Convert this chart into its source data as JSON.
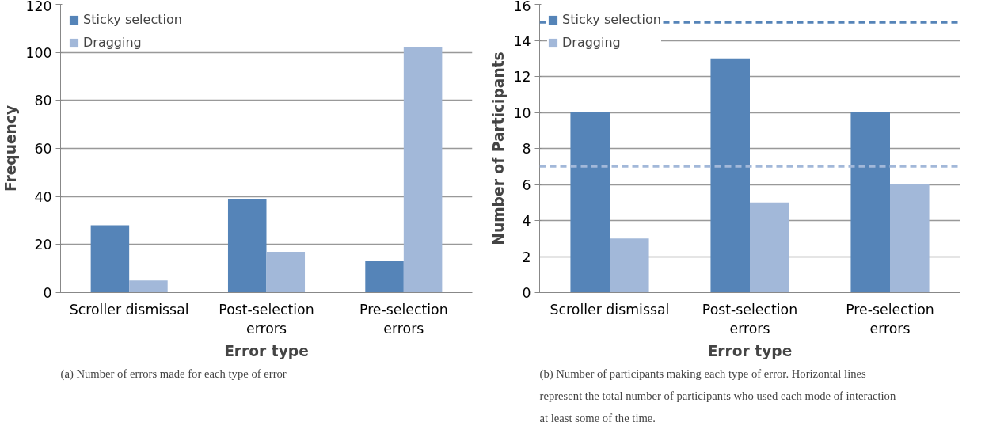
{
  "chart_data": [
    {
      "type": "bar",
      "xlabel": "Error type",
      "ylabel": "Frequency",
      "categories": [
        "Scroller dismissal",
        "Post-selection\nerrors",
        "Pre-selection\nerrors"
      ],
      "series": [
        {
          "name": "Sticky selection",
          "color": "#5584b8",
          "values": [
            28,
            39,
            13
          ]
        },
        {
          "name": "Dragging",
          "color": "#a2b8d9",
          "values": [
            5,
            17,
            102
          ]
        }
      ],
      "ylim": [
        0,
        120
      ],
      "yticks": [
        0,
        20,
        40,
        60,
        80,
        100,
        120
      ],
      "grid": "y",
      "legend": "top left",
      "annotations": [
        "(a) Number of errors made for each type of error"
      ]
    },
    {
      "type": "bar",
      "xlabel": "Error type",
      "ylabel": "Number of Participants",
      "categories": [
        "Scroller dismissal",
        "Post-selection\nerrors",
        "Pre-selection\nerrors"
      ],
      "series": [
        {
          "name": "Sticky selection",
          "color": "#5584b8",
          "values": [
            10,
            13,
            10
          ]
        },
        {
          "name": "Dragging",
          "color": "#a2b8d9",
          "values": [
            3,
            5,
            6
          ]
        }
      ],
      "ylim": [
        0,
        16
      ],
      "yticks": [
        0,
        2,
        4,
        6,
        8,
        10,
        12,
        14,
        16
      ],
      "grid": "y",
      "legend": "top left",
      "ref_lines": [
        {
          "axis": "y",
          "value": 15,
          "color": "#5584b8",
          "line_style": "dashed"
        },
        {
          "axis": "y",
          "value": 7,
          "color": "#a2b8d9",
          "line_style": "dashed"
        }
      ],
      "annotations": [
        "(b) Number of participants making each type of error. Horizontal lines represent the total number of participants who used each mode of interaction at least some of the time."
      ]
    }
  ]
}
